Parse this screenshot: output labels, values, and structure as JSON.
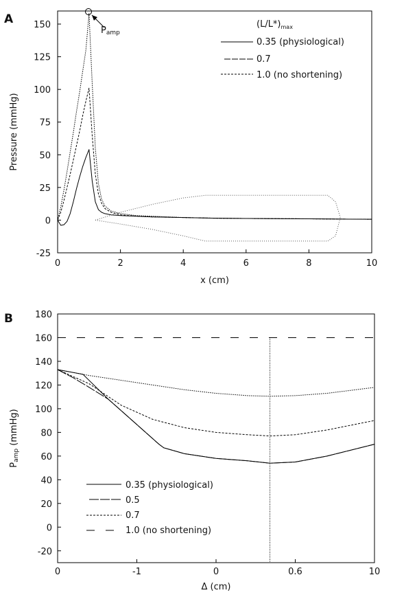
{
  "chart_data": [
    {
      "panel": "A",
      "type": "line",
      "xlabel": "x (cm)",
      "ylabel": "Pressure (mmHg)",
      "xlim": [
        0,
        10
      ],
      "ylim": [
        -25,
        160
      ],
      "xticks": [
        0,
        2,
        4,
        6,
        8,
        10
      ],
      "yticks": [
        -25,
        0,
        25,
        50,
        75,
        100,
        125,
        150
      ],
      "legend_title": "(L/L*)",
      "legend_title_sub": "max",
      "legend_position": "top-right",
      "annotation": {
        "text": "P",
        "sub": "amp",
        "x": 1.0,
        "y": 158
      },
      "series": [
        {
          "name": "0.35 (physiological)",
          "style": "solid",
          "x": [
            0,
            0.1,
            0.2,
            0.3,
            0.4,
            0.5,
            0.6,
            0.7,
            0.8,
            0.9,
            1.0,
            1.1,
            1.2,
            1.3,
            1.4,
            1.5,
            1.7,
            2.0,
            2.5,
            3.0,
            4.0,
            5.0,
            6.0,
            7.0,
            8.0,
            9.0,
            10.0
          ],
          "y": [
            0,
            -4,
            -3.5,
            -1,
            5,
            14,
            24,
            33,
            41,
            48,
            54,
            30,
            14,
            8,
            6,
            5,
            4,
            3.5,
            3,
            2.5,
            2,
            1.5,
            1.3,
            1.1,
            1,
            0.8,
            0.7
          ]
        },
        {
          "name": "0.7",
          "style": "dashed",
          "x": [
            0,
            0.1,
            0.2,
            0.3,
            0.4,
            0.5,
            0.6,
            0.7,
            0.8,
            0.9,
            1.0,
            1.1,
            1.2,
            1.3,
            1.4,
            1.5,
            1.7,
            2.0,
            2.5,
            3.0,
            4.0,
            5.0,
            6.0,
            7.0,
            8.0,
            9.0,
            10.0
          ],
          "y": [
            0,
            6,
            15,
            25,
            35,
            46,
            57,
            68,
            80,
            91,
            101,
            65,
            35,
            20,
            13,
            9,
            6,
            4,
            3,
            2.5,
            2,
            1.5,
            1.3,
            1.1,
            1,
            0.8,
            0.7
          ]
        },
        {
          "name": "1.0 (no shortening)",
          "style": "dotted",
          "x": [
            0,
            0.1,
            0.2,
            0.3,
            0.4,
            0.5,
            0.6,
            0.7,
            0.8,
            0.9,
            1.0,
            1.1,
            1.2,
            1.3,
            1.4,
            1.5,
            1.7,
            2.0,
            2.5,
            3.0,
            4.0,
            5.0,
            6.0,
            7.0,
            8.0,
            9.0,
            10.0
          ],
          "y": [
            0,
            10,
            23,
            37,
            52,
            67,
            83,
            98,
            114,
            130,
            158,
            105,
            55,
            28,
            16,
            11,
            7,
            5,
            3.5,
            3,
            2,
            1.5,
            1.3,
            1.1,
            1,
            0.8,
            0.7
          ]
        },
        {
          "name": "",
          "style": "fine-dotted",
          "x": [
            1.2,
            2.0,
            3.0,
            4.0,
            4.7,
            6.0,
            7.0,
            8.0,
            8.6,
            8.85,
            9.0
          ],
          "y": [
            0,
            6,
            12,
            17,
            19,
            19,
            19,
            19,
            19,
            14,
            2
          ]
        },
        {
          "name": "",
          "style": "fine-dotted",
          "x": [
            1.2,
            2.0,
            3.0,
            4.0,
            4.7,
            6.0,
            7.0,
            8.0,
            8.6,
            8.85,
            9.0
          ],
          "y": [
            0,
            -3,
            -7,
            -12,
            -16,
            -16,
            -16,
            -16,
            -16,
            -12,
            2
          ]
        }
      ]
    },
    {
      "panel": "B",
      "type": "line",
      "xlabel": "Δ (cm)",
      "ylabel": "P",
      "ylabel_sub": "amp",
      "ylabel_unit": " (mmHg)",
      "xlim": [
        0,
        10
      ],
      "ylim": [
        -30,
        180
      ],
      "xtick_labels": [
        "0",
        "-1",
        "0",
        "0.6",
        "10"
      ],
      "yticks": [
        -20,
        0,
        20,
        40,
        60,
        80,
        100,
        120,
        140,
        160,
        180
      ],
      "vline_x": 6.7,
      "legend_position": "bottom-left",
      "series": [
        {
          "name": "0.35 (physiological)",
          "style": "solid",
          "x": [
            0,
            0.8,
            1.6,
            2.4,
            3.2,
            3.35,
            4.0,
            5.0,
            6.0,
            6.7,
            7.5,
            8.5,
            10.0
          ],
          "y": [
            133,
            129,
            108,
            89,
            70,
            67,
            62,
            58,
            56,
            54,
            55,
            60,
            70
          ]
        },
        {
          "name": "0.5",
          "style": "long-dashed",
          "x": [
            0,
            0.5,
            1.0,
            1.6,
            2.4,
            3.2,
            3.35,
            4.0,
            5.0,
            6.0,
            6.7,
            7.5,
            8.5,
            10.0
          ],
          "y": [
            133,
            126,
            118,
            108,
            89,
            70,
            67,
            62,
            58,
            56,
            54,
            55,
            60,
            70
          ]
        },
        {
          "name": "0.7",
          "style": "dashed",
          "x": [
            0,
            1.0,
            2.0,
            3.0,
            4.0,
            5.0,
            6.0,
            6.7,
            7.5,
            8.5,
            10.0
          ],
          "y": [
            133,
            121,
            103,
            91,
            84,
            80,
            78,
            77,
            78,
            82,
            90
          ]
        },
        {
          "name": "",
          "style": "dotted",
          "x": [
            0,
            1.0,
            2.0,
            3.0,
            4.0,
            5.0,
            6.0,
            6.7,
            7.5,
            8.5,
            10.0
          ],
          "y": [
            133,
            128,
            124,
            120,
            116,
            113,
            111,
            110.5,
            111,
            113,
            118
          ]
        },
        {
          "name": "1.0 (no shortening)",
          "style": "wide-dashed",
          "x": [
            0,
            10
          ],
          "y": [
            160,
            160
          ]
        }
      ]
    }
  ]
}
